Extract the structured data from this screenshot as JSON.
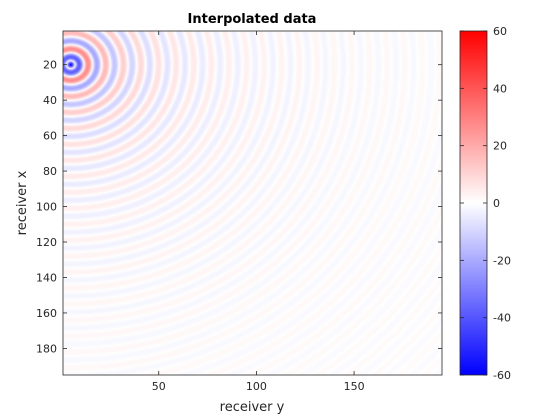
{
  "chart_data": {
    "type": "heatmap",
    "title": "Interpolated data",
    "xlabel": "receiver y",
    "ylabel": "receiver x",
    "xlim": [
      1,
      195
    ],
    "ylim": [
      1,
      195
    ],
    "y_reversed": true,
    "xticks": [
      50,
      100,
      150
    ],
    "yticks": [
      20,
      40,
      60,
      80,
      100,
      120,
      140,
      160,
      180
    ],
    "grid": false,
    "colormap": "blue-white-red",
    "clim": [
      -60,
      60
    ],
    "colorbar_ticks": [
      -60,
      -40,
      -20,
      0,
      20,
      40,
      60
    ],
    "colors": {
      "low": "#0000ff",
      "mid": "#ffffff",
      "high": "#ff0000"
    },
    "source": {
      "x": 5,
      "y": 20
    },
    "pattern": "concentric wavefronts radiating from the source, amplitude decaying with distance"
  }
}
